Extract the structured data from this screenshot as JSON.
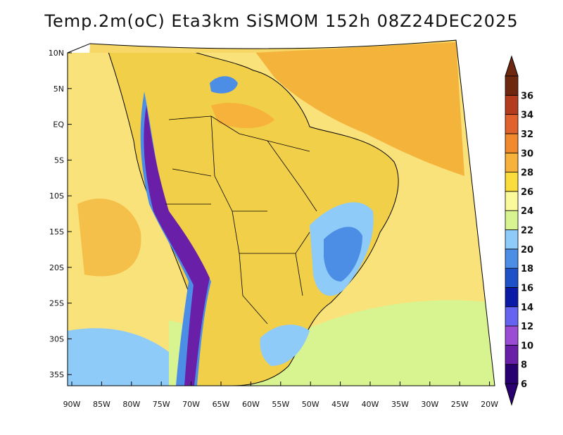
{
  "title": "Temp.2m(oC) Eta3km SiSMOM 152h 08Z24DEC2025",
  "lat_labels": [
    "10N",
    "5N",
    "EQ",
    "5S",
    "10S",
    "15S",
    "20S",
    "25S",
    "30S",
    "35S"
  ],
  "lon_labels": [
    "90W",
    "85W",
    "80W",
    "75W",
    "70W",
    "65W",
    "60W",
    "55W",
    "50W",
    "45W",
    "40W",
    "35W",
    "30W",
    "25W",
    "20W"
  ],
  "colorbar": {
    "labels": [
      "6",
      "8",
      "10",
      "12",
      "14",
      "16",
      "18",
      "20",
      "22",
      "24",
      "26",
      "28",
      "30",
      "32",
      "34",
      "36"
    ],
    "colors": [
      "#2a0070",
      "#6a1fa8",
      "#9a4cd4",
      "#6464f0",
      "#0a1aa6",
      "#1e50c8",
      "#4c8ee6",
      "#8ecbf8",
      "#d8f490",
      "#fafa9a",
      "#fadc3c",
      "#f6b23a",
      "#f08a2c",
      "#e0622c",
      "#b43c1e",
      "#6e2810"
    ]
  },
  "map": {
    "ocean_color": "#f9dc6a",
    "land_color": "#f2ce48",
    "border_color": "#000000"
  }
}
